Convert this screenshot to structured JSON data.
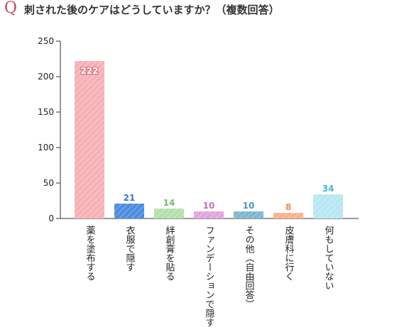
{
  "header": {
    "q_mark": "Q",
    "title": "刺された後のケアはどうしていますか？（複数回答）"
  },
  "colors": {
    "q_mark": "#c8465a",
    "axis": "#333333"
  },
  "chart_data": {
    "type": "bar",
    "title": "刺された後のケアはどうしていますか？（複数回答）",
    "xlabel": "",
    "ylabel": "",
    "ylim": [
      0,
      250
    ],
    "yticks": [
      0,
      50,
      100,
      150,
      200,
      250
    ],
    "grid": false,
    "categories": [
      "薬を塗布する",
      "衣服で隠す",
      "絆創膏を貼る",
      "ファンデーションで隠す",
      "その他（自由回答）",
      "皮膚科に行く",
      "何もしていない"
    ],
    "values": [
      222,
      21,
      14,
      10,
      10,
      8,
      34
    ],
    "bar_colors": [
      "#f5b2b6",
      "#4e8ddc",
      "#b4e0ab",
      "#e3a4e0",
      "#7db7cf",
      "#f8b38e",
      "#b8e7f4"
    ],
    "label_colors": [
      "#ffffff",
      "#3c78c8",
      "#7cb96f",
      "#c86bc4",
      "#4a98b8",
      "#ee8a55",
      "#49b3d4"
    ]
  }
}
